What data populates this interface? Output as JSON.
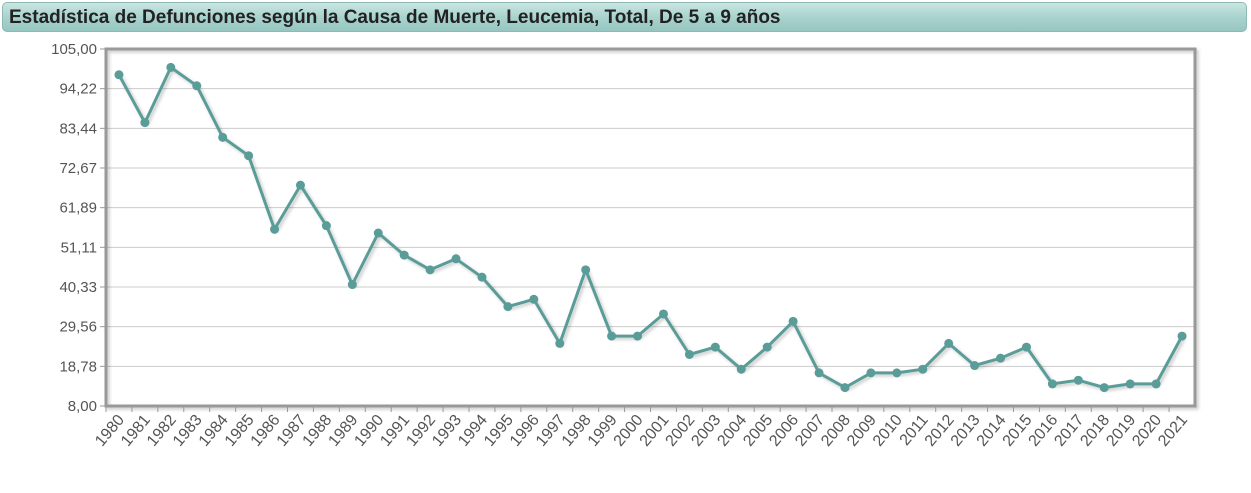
{
  "title": "Estadística de Defunciones según la Causa de Muerte, Leucemia, Total, De 5 a 9 años",
  "colors": {
    "line": "#5a9c98",
    "grid": "#cccccc",
    "frame": "#999999",
    "tick_text": "#555555"
  },
  "chart_data": {
    "type": "line",
    "title": "Estadística de Defunciones según la Causa de Muerte, Leucemia, Total, De 5 a 9 años",
    "xlabel": "",
    "ylabel": "",
    "ylim": [
      8.0,
      105.0
    ],
    "y_ticks": [
      "8,00",
      "18,78",
      "29,56",
      "40,33",
      "51,11",
      "61,89",
      "72,67",
      "83,44",
      "94,22",
      "105,00"
    ],
    "grid": true,
    "categories": [
      "1980",
      "1981",
      "1982",
      "1983",
      "1984",
      "1985",
      "1986",
      "1987",
      "1988",
      "1989",
      "1990",
      "1991",
      "1992",
      "1993",
      "1994",
      "1995",
      "1996",
      "1997",
      "1998",
      "1999",
      "2000",
      "2001",
      "2002",
      "2003",
      "2004",
      "2005",
      "2006",
      "2007",
      "2008",
      "2009",
      "2010",
      "2011",
      "2012",
      "2013",
      "2014",
      "2015",
      "2016",
      "2017",
      "2018",
      "2019",
      "2020",
      "2021"
    ],
    "series": [
      {
        "values": [
          98,
          85,
          100,
          95,
          81,
          76,
          56,
          68,
          57,
          41,
          55,
          49,
          45,
          48,
          43,
          35,
          37,
          25,
          45,
          27,
          27,
          33,
          22,
          24,
          18,
          24,
          31,
          17,
          13,
          17,
          17,
          18,
          25,
          19,
          21,
          24,
          14,
          15,
          13,
          14,
          14,
          27
        ]
      }
    ]
  }
}
